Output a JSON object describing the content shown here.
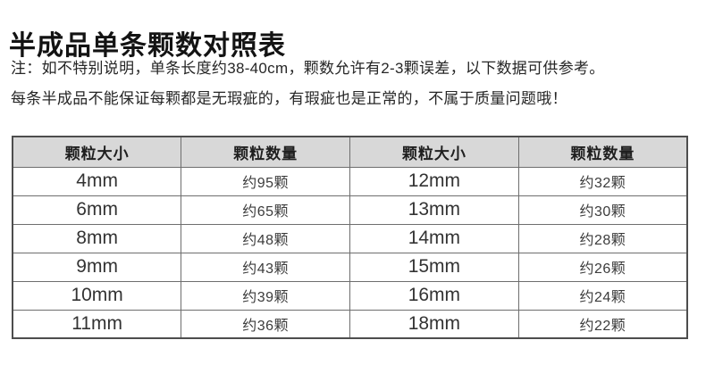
{
  "page": {
    "title": "半成品单条颗数对照表",
    "notes": [
      "注：如不特别说明，单条长度约38-40cm，颗数允许有2-3颗误差，以下数据可供参考。",
      "每条半成品不能保证每颗都是无瑕疵的，有瑕疵也是正常的，不属于质量问题哦！"
    ]
  },
  "table": {
    "headers": [
      "颗粒大小",
      "颗粒数量",
      "颗粒大小",
      "颗粒数量"
    ],
    "rows": [
      [
        "4mm",
        "约95颗",
        "12mm",
        "约32颗"
      ],
      [
        "6mm",
        "约65颗",
        "13mm",
        "约30颗"
      ],
      [
        "8mm",
        "约48颗",
        "14mm",
        "约28颗"
      ],
      [
        "9mm",
        "约43颗",
        "15mm",
        "约26颗"
      ],
      [
        "10mm",
        "约39颗",
        "16mm",
        "约24颗"
      ],
      [
        "11mm",
        "约36颗",
        "18mm",
        "约22颗"
      ]
    ],
    "colors": {
      "header_bg": "#d8d8d8",
      "border": "#6e6e6e",
      "outer_border": "#4d4d4d",
      "text": "#333333"
    }
  },
  "chart_data": {
    "type": "table",
    "title": "半成品单条颗数对照表",
    "columns": [
      "颗粒大小",
      "颗粒数量"
    ],
    "pairs": [
      {
        "size": "4mm",
        "count": "约95颗"
      },
      {
        "size": "6mm",
        "count": "约65颗"
      },
      {
        "size": "8mm",
        "count": "约48颗"
      },
      {
        "size": "9mm",
        "count": "约43颗"
      },
      {
        "size": "10mm",
        "count": "约39颗"
      },
      {
        "size": "11mm",
        "count": "约36颗"
      },
      {
        "size": "12mm",
        "count": "约32颗"
      },
      {
        "size": "13mm",
        "count": "约30颗"
      },
      {
        "size": "14mm",
        "count": "约28颗"
      },
      {
        "size": "15mm",
        "count": "约26颗"
      },
      {
        "size": "16mm",
        "count": "约24颗"
      },
      {
        "size": "18mm",
        "count": "约22颗"
      }
    ]
  }
}
